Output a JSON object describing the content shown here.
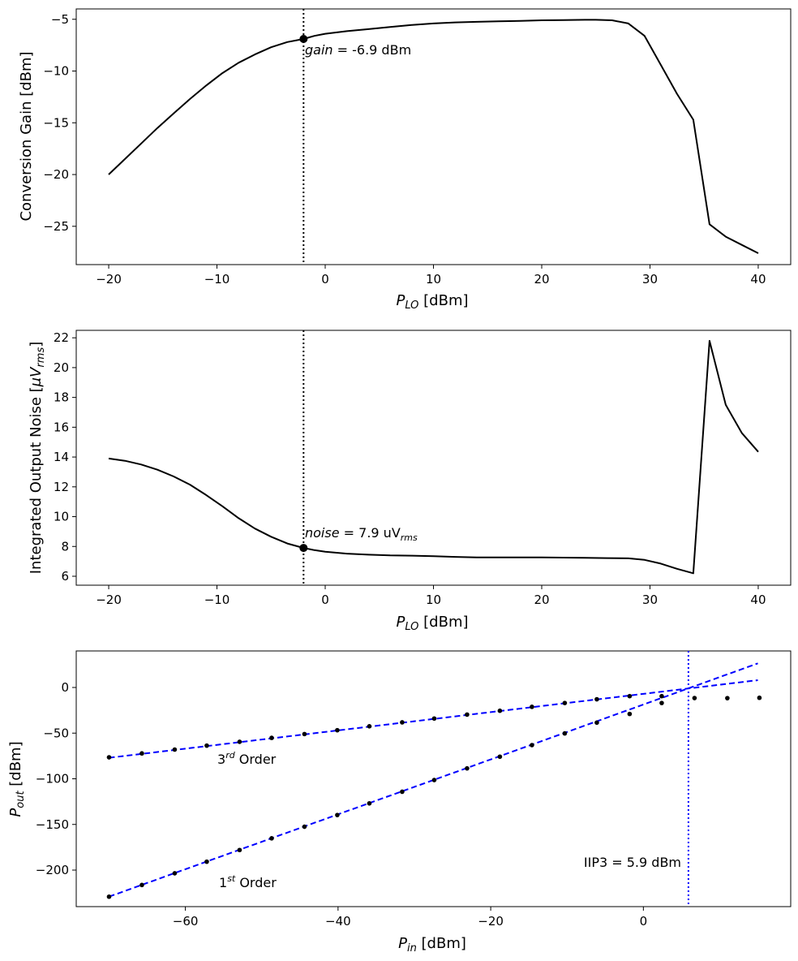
{
  "chart_data": [
    {
      "type": "line",
      "ylabel": "Conversion Gain [dBm]",
      "xlabel_main": "P",
      "xlabel_sub": "LO",
      "xlabel_unit": " [dBm]",
      "xlim": [
        -23,
        43
      ],
      "ylim": [
        -28.7,
        -4.0
      ],
      "xticks": [
        -20,
        -10,
        0,
        10,
        20,
        30,
        40
      ],
      "yticks": [
        -25,
        -20,
        -15,
        -10,
        -5
      ],
      "series": [
        {
          "name": "gain",
          "color": "#000000",
          "x": [
            -20,
            -18.5,
            -17,
            -15.5,
            -14,
            -12.5,
            -11,
            -9.5,
            -8,
            -6.5,
            -5,
            -3.5,
            -2,
            -1,
            0,
            2,
            4,
            6,
            8,
            10,
            12,
            14,
            16,
            18,
            20,
            22,
            24,
            25,
            26.5,
            28,
            29.5,
            31,
            32.5,
            34,
            35.5,
            37,
            38.5,
            40
          ],
          "y": [
            -20.0,
            -18.5,
            -17.0,
            -15.5,
            -14.1,
            -12.7,
            -11.4,
            -10.2,
            -9.2,
            -8.4,
            -7.7,
            -7.2,
            -6.9,
            -6.6,
            -6.4,
            -6.15,
            -5.95,
            -5.75,
            -5.55,
            -5.4,
            -5.3,
            -5.25,
            -5.2,
            -5.15,
            -5.1,
            -5.08,
            -5.05,
            -5.05,
            -5.1,
            -5.4,
            -6.6,
            -9.4,
            -12.2,
            -14.7,
            -24.8,
            -26.0,
            -26.8,
            -27.6
          ]
        }
      ],
      "vline_x": -2,
      "marker": {
        "x": -2,
        "y": -6.9
      },
      "annotation": {
        "italic": "gain",
        "text": " = -6.9 dBm"
      }
    },
    {
      "type": "line",
      "ylabel_main": "Integrated Output Noise [",
      "ylabel_mu": "μ",
      "ylabel_v": "V",
      "ylabel_sub": "rms",
      "ylabel_close": "]",
      "xlabel_main": "P",
      "xlabel_sub": "LO",
      "xlabel_unit": " [dBm]",
      "xlim": [
        -23,
        43
      ],
      "ylim": [
        5.4,
        22.5
      ],
      "xticks": [
        -20,
        -10,
        0,
        10,
        20,
        30,
        40
      ],
      "yticks": [
        6,
        8,
        10,
        12,
        14,
        16,
        18,
        20,
        22
      ],
      "series": [
        {
          "name": "noise",
          "color": "#000000",
          "x": [
            -20,
            -18.5,
            -17,
            -15.5,
            -14,
            -12.5,
            -11,
            -9.5,
            -8,
            -6.5,
            -5,
            -3.5,
            -2,
            -1,
            0,
            2,
            4,
            6,
            8,
            10,
            12,
            14,
            16,
            18,
            20,
            22,
            24,
            26,
            28,
            29.5,
            31,
            32.5,
            34,
            35.5,
            37,
            38.5,
            40
          ],
          "y": [
            13.9,
            13.75,
            13.5,
            13.15,
            12.7,
            12.15,
            11.45,
            10.7,
            9.9,
            9.2,
            8.65,
            8.2,
            7.9,
            7.75,
            7.65,
            7.52,
            7.45,
            7.4,
            7.38,
            7.35,
            7.3,
            7.27,
            7.27,
            7.27,
            7.27,
            7.25,
            7.24,
            7.22,
            7.2,
            7.1,
            6.85,
            6.5,
            6.2,
            21.8,
            17.5,
            15.6,
            14.35
          ]
        }
      ],
      "vline_x": -2,
      "marker": {
        "x": -2,
        "y": 7.9
      },
      "annotation": {
        "italic": "noise",
        "text": " = 7.9 uV",
        "sub": "rms"
      }
    },
    {
      "type": "scatter",
      "ylabel_main": "P",
      "ylabel_sub": "out",
      "ylabel_unit": " [dBm]",
      "xlabel_main": "P",
      "xlabel_sub": "in",
      "xlabel_unit": " [dBm]",
      "xlim": [
        -74.3,
        19.3
      ],
      "ylim": [
        -240,
        40
      ],
      "xticks": [
        -60,
        -40,
        -20,
        0
      ],
      "yticks": [
        -200,
        -150,
        -100,
        -50,
        0
      ],
      "points_third": {
        "x": [
          -70,
          -65.7,
          -61.4,
          -57.2,
          -52.9,
          -48.7,
          -44.4,
          -40.1,
          -35.9,
          -31.6,
          -27.4,
          -23.1,
          -18.8,
          -14.6,
          -10.3,
          -6.1,
          -1.8,
          2.4,
          6.7,
          11.0,
          15.2
        ],
        "y": [
          -76.5,
          -72.2,
          -68.0,
          -63.7,
          -59.5,
          -55.2,
          -51.0,
          -46.8,
          -42.5,
          -38.2,
          -34.0,
          -29.7,
          -25.5,
          -21.2,
          -17.0,
          -12.9,
          -9.5,
          -9.5,
          -11.6,
          -11.7,
          -11.3
        ]
      },
      "points_first": {
        "x": [
          -70,
          -65.7,
          -61.4,
          -57.2,
          -52.9,
          -48.7,
          -44.4,
          -40.1,
          -35.9,
          -31.6,
          -27.4,
          -23.1,
          -18.8,
          -14.6,
          -10.3,
          -6.1,
          -1.8,
          2.4
        ],
        "y": [
          -229.1,
          -216.3,
          -203.5,
          -190.8,
          -178.0,
          -165.2,
          -152.5,
          -139.7,
          -126.9,
          -114.2,
          -101.4,
          -88.6,
          -75.8,
          -63.1,
          -50.3,
          -38.5,
          -29.0,
          -17.0
        ]
      },
      "fit_third": {
        "x": [
          -70,
          15
        ],
        "y": [
          -77.0,
          8.0
        ]
      },
      "fit_first": {
        "x": [
          -70,
          15
        ],
        "y": [
          -229.1,
          26.4
        ]
      },
      "fit_color": "#0000ff",
      "iip3_x": 5.9,
      "iip3_label": "IIP3 = 5.9 dBm",
      "label_third": {
        "main": "3",
        "sup": "rd",
        "rest": " Order"
      },
      "label_first": {
        "main": "1",
        "sup": "st",
        "rest": " Order"
      }
    }
  ]
}
